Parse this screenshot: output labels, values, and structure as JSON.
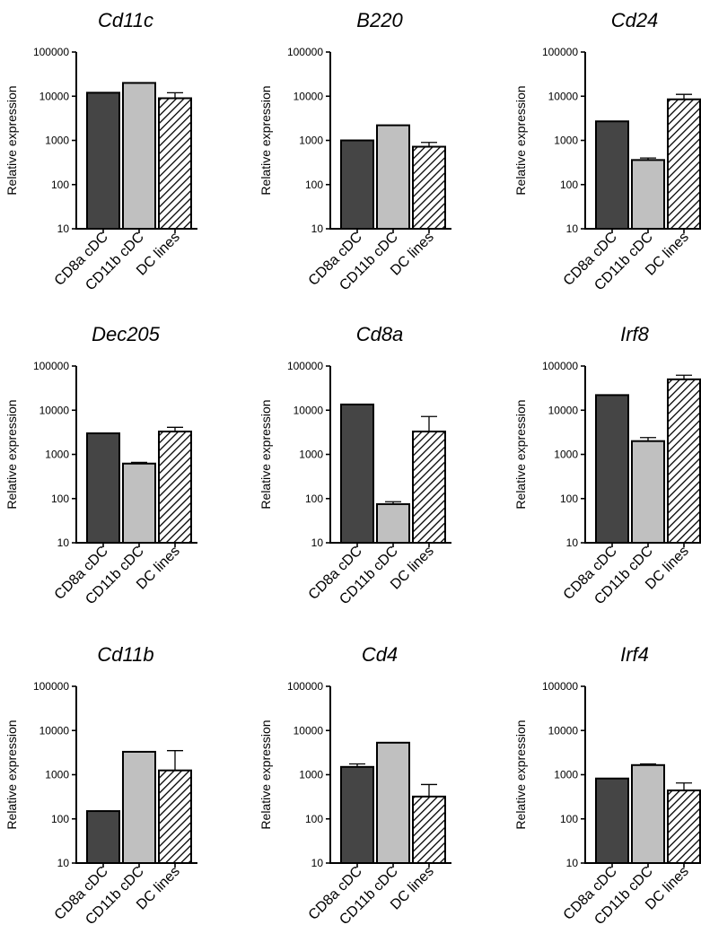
{
  "chart_data": [
    {
      "type": "bar",
      "title": "Cd11c",
      "ylabel": "Relative expression",
      "yscale": "log",
      "ylim": [
        10,
        100000
      ],
      "yticks": [
        "10",
        "100",
        "1000",
        "10000",
        "100000"
      ],
      "categories": [
        "CD8a cDC",
        "CD11b cDC",
        "DC lines"
      ],
      "values": [
        12000,
        20000,
        9000
      ],
      "error_upper": [
        12300,
        20500,
        12000
      ]
    },
    {
      "type": "bar",
      "title": "B220",
      "ylabel": "Relative expression",
      "yscale": "log",
      "ylim": [
        10,
        100000
      ],
      "yticks": [
        "10",
        "100",
        "1000",
        "10000",
        "100000"
      ],
      "categories": [
        "CD8a cDC",
        "CD11b cDC",
        "DC lines"
      ],
      "values": [
        1000,
        2200,
        720
      ],
      "error_upper": [
        1030,
        2250,
        900
      ]
    },
    {
      "type": "bar",
      "title": "Cd24",
      "ylabel": "Relative expression",
      "yscale": "log",
      "ylim": [
        10,
        100000
      ],
      "yticks": [
        "10",
        "100",
        "1000",
        "10000",
        "100000"
      ],
      "categories": [
        "CD8a cDC",
        "CD11b cDC",
        "DC lines"
      ],
      "values": [
        2700,
        360,
        8500
      ],
      "error_upper": [
        2750,
        400,
        11000
      ]
    },
    {
      "type": "bar",
      "title": "Dec205",
      "ylabel": "Relative expression",
      "yscale": "log",
      "ylim": [
        10,
        100000
      ],
      "yticks": [
        "10",
        "100",
        "1000",
        "10000",
        "100000"
      ],
      "categories": [
        "CD8a cDC",
        "CD11b cDC",
        "DC lines"
      ],
      "values": [
        3000,
        620,
        3300
      ],
      "error_upper": [
        3050,
        660,
        4100
      ]
    },
    {
      "type": "bar",
      "title": "Cd8a",
      "ylabel": "Relative expression",
      "yscale": "log",
      "ylim": [
        10,
        100000
      ],
      "yticks": [
        "10",
        "100",
        "1000",
        "10000",
        "100000"
      ],
      "categories": [
        "CD8a cDC",
        "CD11b cDC",
        "DC lines"
      ],
      "values": [
        13500,
        75,
        3300
      ],
      "error_upper": [
        13700,
        85,
        7200
      ]
    },
    {
      "type": "bar",
      "title": "Irf8",
      "ylabel": "Relative expression",
      "yscale": "log",
      "ylim": [
        10,
        100000
      ],
      "yticks": [
        "10",
        "100",
        "1000",
        "10000",
        "100000"
      ],
      "categories": [
        "CD8a cDC",
        "CD11b cDC",
        "DC lines"
      ],
      "values": [
        22000,
        2000,
        50000
      ],
      "error_upper": [
        22500,
        2400,
        62000
      ]
    },
    {
      "type": "bar",
      "title": "Cd11b",
      "ylabel": "Relative expression",
      "yscale": "log",
      "ylim": [
        10,
        100000
      ],
      "yticks": [
        "10",
        "100",
        "1000",
        "10000",
        "100000"
      ],
      "categories": [
        "CD8a cDC",
        "CD11b cDC",
        "DC lines"
      ],
      "values": [
        150,
        3300,
        1250
      ],
      "error_upper": [
        155,
        3350,
        3500
      ]
    },
    {
      "type": "bar",
      "title": "Cd4",
      "ylabel": "Relative expression",
      "yscale": "log",
      "ylim": [
        10,
        100000
      ],
      "yticks": [
        "10",
        "100",
        "1000",
        "10000",
        "100000"
      ],
      "categories": [
        "CD8a cDC",
        "CD11b cDC",
        "DC lines"
      ],
      "values": [
        1500,
        5300,
        320
      ],
      "error_upper": [
        1750,
        5500,
        600
      ]
    },
    {
      "type": "bar",
      "title": "Irf4",
      "ylabel": "Relative expression",
      "yscale": "log",
      "ylim": [
        10,
        100000
      ],
      "yticks": [
        "10",
        "100",
        "1000",
        "10000",
        "100000"
      ],
      "categories": [
        "CD8a cDC",
        "CD11b cDC",
        "DC lines"
      ],
      "values": [
        820,
        1650,
        440
      ],
      "error_upper": [
        850,
        1750,
        650
      ]
    }
  ],
  "series_styles": [
    {
      "fill": "#454545"
    },
    {
      "fill": "#c0c0c0"
    },
    {
      "fill": "hatch"
    }
  ]
}
